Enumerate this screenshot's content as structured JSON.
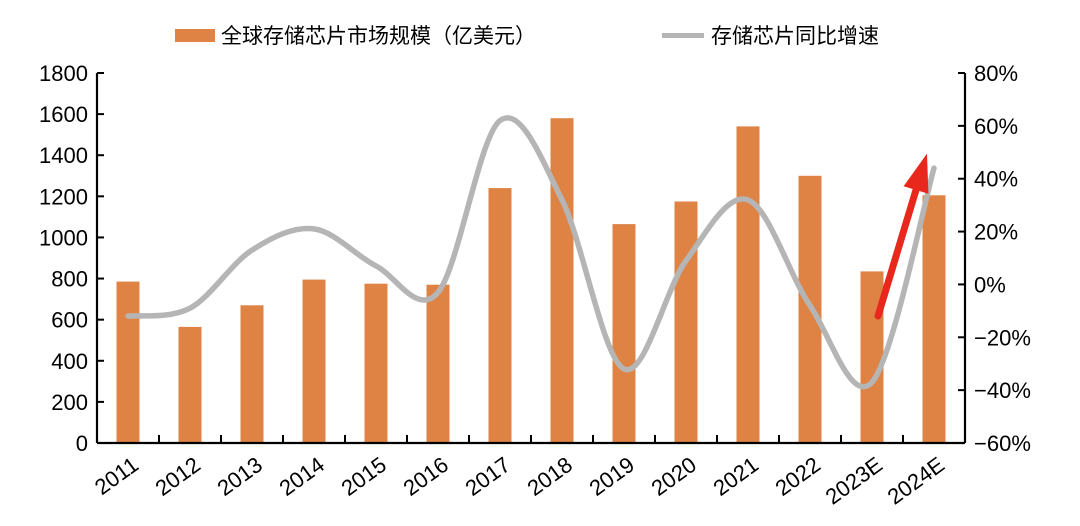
{
  "legend": {
    "bar_label": "全球存储芯片市场规模（亿美元）",
    "line_label": "存储芯片同比增速"
  },
  "colors": {
    "bar": "#de8344",
    "line": "#b5b5b5",
    "arrow": "#e8281c",
    "axis": "#000000"
  },
  "chart_data": {
    "type": "bar+line",
    "title": "",
    "categories": [
      "2011",
      "2012",
      "2013",
      "2014",
      "2015",
      "2016",
      "2017",
      "2018",
      "2019",
      "2020",
      "2021",
      "2022",
      "2023E",
      "2024E"
    ],
    "series": [
      {
        "name": "全球存储芯片市场规模（亿美元）",
        "type": "bar",
        "axis": "left",
        "values": [
          785,
          565,
          670,
          795,
          775,
          770,
          1240,
          1580,
          1065,
          1175,
          1540,
          1300,
          835,
          1205
        ]
      },
      {
        "name": "存储芯片同比增速",
        "type": "line",
        "axis": "right",
        "values": [
          -12,
          -9,
          13,
          21,
          7,
          -3,
          62,
          32,
          -32,
          9,
          32,
          -8,
          -37,
          44
        ]
      }
    ],
    "axes": {
      "left": {
        "min": 0,
        "max": 1800,
        "tick_values": [
          0,
          200,
          400,
          600,
          800,
          1000,
          1200,
          1400,
          1600,
          1800
        ],
        "tick_labels": [
          "0",
          "200",
          "400",
          "600",
          "800",
          "1000",
          "1200",
          "1400",
          "1600",
          "1800"
        ]
      },
      "right": {
        "min": -60,
        "max": 80,
        "tick_values": [
          -60,
          -40,
          -20,
          0,
          20,
          40,
          60,
          80
        ],
        "tick_labels": [
          "−60%",
          "−40%",
          "−20%",
          "0%",
          "20%",
          "40%",
          "60%",
          "80%"
        ]
      }
    },
    "grid": false,
    "legend_position": "top",
    "annotations": [
      {
        "type": "up-arrow",
        "meaning": "sharp growth rebound in 2024E",
        "x1": 878,
        "y1": 316,
        "x2": 916,
        "y2": 190,
        "head_length": 38,
        "head_width": 26,
        "shaft_width": 7
      }
    ]
  }
}
